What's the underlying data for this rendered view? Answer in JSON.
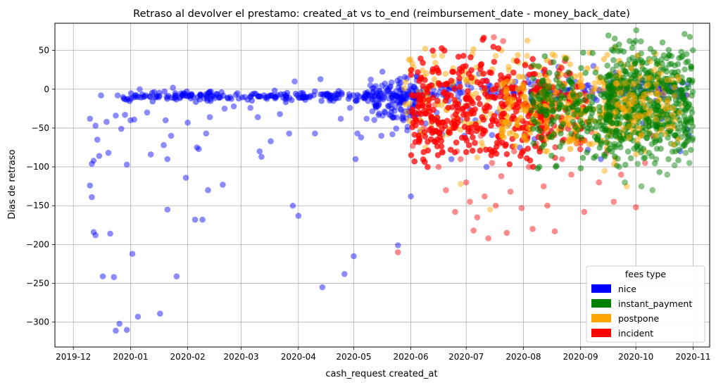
{
  "chart_data": {
    "type": "scatter",
    "title": "Retraso al devolver el prestamo: created_at vs to_end (reimbursement_date - money_back_date)",
    "xlabel": "cash_request created_at",
    "ylabel": "Dias de retraso",
    "x_ticks": [
      "2019-12",
      "2020-01",
      "2020-02",
      "2020-03",
      "2020-04",
      "2020-05",
      "2020-06",
      "2020-07",
      "2020-08",
      "2020-09",
      "2020-10",
      "2020-11"
    ],
    "y_ticks": [
      50,
      0,
      -50,
      -100,
      -150,
      -200,
      -250,
      -300
    ],
    "xlim": [
      "2019-11-21",
      "2020-11-10"
    ],
    "ylim": [
      -332,
      85
    ],
    "grid": true,
    "legend": {
      "title": "fees type",
      "placement": "lower-right",
      "entries": [
        {
          "label": "nice",
          "color": "#0000ff"
        },
        {
          "label": "instant_payment",
          "color": "#008000"
        },
        {
          "label": "postpone",
          "color": "#ffa500"
        },
        {
          "label": "incident",
          "color": "#ff0000"
        }
      ]
    },
    "series": [
      {
        "name": "nice",
        "color": "#0000ff",
        "points": [
          [
            "2019-12-10",
            -38
          ],
          [
            "2019-12-10",
            -124
          ],
          [
            "2019-12-11",
            -139
          ],
          [
            "2019-12-11",
            -96
          ],
          [
            "2019-12-12",
            -92
          ],
          [
            "2019-12-12",
            -184
          ],
          [
            "2019-12-13",
            -188
          ],
          [
            "2019-12-13",
            -47
          ],
          [
            "2019-12-14",
            -65
          ],
          [
            "2019-12-15",
            -86
          ],
          [
            "2019-12-16",
            -8
          ],
          [
            "2019-12-17",
            -241
          ],
          [
            "2019-12-19",
            -42
          ],
          [
            "2019-12-20",
            -82
          ],
          [
            "2019-12-21",
            -186
          ],
          [
            "2019-12-23",
            -242
          ],
          [
            "2019-12-24",
            -34
          ],
          [
            "2019-12-24",
            -311
          ],
          [
            "2019-12-25",
            -8
          ],
          [
            "2019-12-26",
            -302
          ],
          [
            "2019-12-27",
            -51
          ],
          [
            "2019-12-28",
            -10
          ],
          [
            "2019-12-29",
            -33
          ],
          [
            "2019-12-30",
            -97
          ],
          [
            "2019-12-30",
            -310
          ],
          [
            "2020-01-01",
            -40
          ],
          [
            "2020-01-02",
            -212
          ],
          [
            "2020-01-03",
            -39
          ],
          [
            "2020-01-04",
            -10
          ],
          [
            "2020-01-05",
            -293
          ],
          [
            "2020-01-06",
            0
          ],
          [
            "2020-01-08",
            -10
          ],
          [
            "2020-01-10",
            -30
          ],
          [
            "2020-01-12",
            -84
          ],
          [
            "2020-01-15",
            -10
          ],
          [
            "2020-01-17",
            -289
          ],
          [
            "2020-01-19",
            -72
          ],
          [
            "2020-01-20",
            -40
          ],
          [
            "2020-01-21",
            -90
          ],
          [
            "2020-01-21",
            -155
          ],
          [
            "2020-01-23",
            -60
          ],
          [
            "2020-01-24",
            2
          ],
          [
            "2020-01-26",
            -241
          ],
          [
            "2020-01-28",
            -10
          ],
          [
            "2020-01-31",
            -114
          ],
          [
            "2020-02-01",
            -43
          ],
          [
            "2020-02-04",
            -10
          ],
          [
            "2020-02-05",
            -168
          ],
          [
            "2020-02-06",
            -75
          ],
          [
            "2020-02-07",
            -77
          ],
          [
            "2020-02-09",
            -168
          ],
          [
            "2020-02-10",
            -12
          ],
          [
            "2020-02-11",
            -57
          ],
          [
            "2020-02-12",
            -130
          ],
          [
            "2020-02-13",
            -36
          ],
          [
            "2020-02-18",
            -10
          ],
          [
            "2020-02-20",
            -123
          ],
          [
            "2020-02-21",
            -25
          ],
          [
            "2020-02-24",
            -10
          ],
          [
            "2020-02-26",
            -22
          ],
          [
            "2020-02-28",
            -5
          ],
          [
            "2020-03-03",
            -10
          ],
          [
            "2020-03-06",
            -24
          ],
          [
            "2020-03-10",
            -36
          ],
          [
            "2020-03-11",
            -80
          ],
          [
            "2020-03-12",
            -87
          ],
          [
            "2020-03-15",
            -10
          ],
          [
            "2020-03-17",
            -67
          ],
          [
            "2020-03-20",
            -10
          ],
          [
            "2020-03-22",
            -32
          ],
          [
            "2020-03-27",
            -57
          ],
          [
            "2020-03-29",
            -150
          ],
          [
            "2020-03-30",
            10
          ],
          [
            "2020-04-01",
            -163
          ],
          [
            "2020-04-06",
            -10
          ],
          [
            "2020-04-10",
            -57
          ],
          [
            "2020-04-13",
            13
          ],
          [
            "2020-04-14",
            -255
          ],
          [
            "2020-04-17",
            -10
          ],
          [
            "2020-04-20",
            -15
          ],
          [
            "2020-04-24",
            -38
          ],
          [
            "2020-04-26",
            -238
          ],
          [
            "2020-04-29",
            -24
          ],
          [
            "2020-05-01",
            -215
          ],
          [
            "2020-05-02",
            -90
          ],
          [
            "2020-05-03",
            -57
          ],
          [
            "2020-05-05",
            -62
          ],
          [
            "2020-05-08",
            -38
          ],
          [
            "2020-05-10",
            5
          ],
          [
            "2020-05-12",
            -10
          ],
          [
            "2020-05-14",
            -22
          ],
          [
            "2020-05-16",
            -60
          ],
          [
            "2020-05-18",
            -30
          ],
          [
            "2020-05-20",
            -12
          ],
          [
            "2020-05-22",
            -58
          ],
          [
            "2020-05-25",
            -201
          ],
          [
            "2020-05-27",
            -10
          ],
          [
            "2020-05-28",
            -40
          ],
          [
            "2020-05-30",
            -53
          ],
          [
            "2020-06-01",
            -138
          ],
          [
            "2020-06-02",
            -20
          ],
          [
            "2020-06-04",
            -33
          ],
          [
            "2020-06-06",
            -55
          ],
          [
            "2020-06-09",
            -44
          ],
          [
            "2020-06-12",
            -7
          ],
          [
            "2020-06-15",
            -30
          ],
          [
            "2020-06-18",
            -58
          ],
          [
            "2020-06-20",
            -10
          ],
          [
            "2020-06-23",
            -90
          ],
          [
            "2020-06-26",
            -22
          ],
          [
            "2020-06-28",
            -40
          ],
          [
            "2020-06-30",
            -60
          ],
          [
            "2020-07-03",
            -26
          ],
          [
            "2020-07-06",
            -40
          ],
          [
            "2020-07-08",
            20
          ],
          [
            "2020-07-12",
            -100
          ],
          [
            "2020-07-15",
            -59
          ],
          [
            "2020-07-18",
            -30
          ],
          [
            "2020-07-20",
            -57
          ],
          [
            "2020-07-22",
            -20
          ],
          [
            "2020-07-24",
            -45
          ],
          [
            "2020-07-26",
            5
          ],
          [
            "2020-07-30",
            -75
          ],
          [
            "2020-08-03",
            16
          ],
          [
            "2020-08-07",
            -64
          ],
          [
            "2020-08-12",
            23
          ],
          [
            "2020-08-16",
            -55
          ],
          [
            "2020-08-20",
            29
          ],
          [
            "2020-09-05",
            -78
          ],
          [
            "2020-09-08",
            30
          ],
          [
            "2020-09-12",
            -90
          ],
          [
            "2020-09-20",
            21
          ],
          [
            "2020-10-05",
            -44
          ],
          [
            "2020-10-15",
            -38
          ],
          [
            "2020-10-25",
            -80
          ],
          [
            "2020-10-29",
            -52
          ],
          [
            "2020-10-30",
            -60
          ]
        ]
      },
      {
        "name": "postpone",
        "color": "#ffa500",
        "points": [
          [
            "2020-05-31",
            38
          ],
          [
            "2020-06-05",
            -12
          ],
          [
            "2020-06-09",
            -75
          ],
          [
            "2020-06-12",
            -45
          ],
          [
            "2020-06-18",
            43
          ],
          [
            "2020-06-21",
            -58
          ],
          [
            "2020-06-25",
            -46
          ],
          [
            "2020-06-27",
            -40
          ],
          [
            "2020-06-28",
            -122
          ],
          [
            "2020-07-02",
            -10
          ],
          [
            "2020-07-04",
            -45
          ],
          [
            "2020-07-07",
            -88
          ],
          [
            "2020-07-10",
            -74
          ],
          [
            "2020-07-12",
            -20
          ],
          [
            "2020-07-14",
            -155
          ],
          [
            "2020-07-17",
            43
          ],
          [
            "2020-07-19",
            -28
          ],
          [
            "2020-07-22",
            -42
          ],
          [
            "2020-07-24",
            29
          ],
          [
            "2020-07-28",
            -60
          ],
          [
            "2020-07-31",
            -22
          ],
          [
            "2020-08-03",
            43
          ],
          [
            "2020-08-07",
            -25
          ],
          [
            "2020-08-10",
            -50
          ],
          [
            "2020-08-14",
            -80
          ],
          [
            "2020-08-18",
            43
          ],
          [
            "2020-08-22",
            -35
          ],
          [
            "2020-08-26",
            -60
          ],
          [
            "2020-08-29",
            -10
          ],
          [
            "2020-09-02",
            -40
          ],
          [
            "2020-09-06",
            -25
          ],
          [
            "2020-09-10",
            -68
          ],
          [
            "2020-09-14",
            -105
          ],
          [
            "2020-09-18",
            -15
          ],
          [
            "2020-09-22",
            -45
          ],
          [
            "2020-09-26",
            -125
          ],
          [
            "2020-09-30",
            -30
          ],
          [
            "2020-10-04",
            30
          ],
          [
            "2020-10-08",
            -55
          ],
          [
            "2020-10-13",
            -5
          ],
          [
            "2020-10-18",
            -35
          ],
          [
            "2020-10-22",
            -50
          ],
          [
            "2020-10-26",
            -20
          ],
          [
            "2020-10-29",
            -8
          ]
        ]
      },
      {
        "name": "incident",
        "color": "#ff0000",
        "points": [
          [
            "2020-05-25",
            -210
          ],
          [
            "2020-06-02",
            -73
          ],
          [
            "2020-06-06",
            -40
          ],
          [
            "2020-06-08",
            -50
          ],
          [
            "2020-06-12",
            -35
          ],
          [
            "2020-06-14",
            -20
          ],
          [
            "2020-06-16",
            -100
          ],
          [
            "2020-06-18",
            -80
          ],
          [
            "2020-06-20",
            -130
          ],
          [
            "2020-06-22",
            -52
          ],
          [
            "2020-06-24",
            -35
          ],
          [
            "2020-06-25",
            -158
          ],
          [
            "2020-06-26",
            -80
          ],
          [
            "2020-06-28",
            -90
          ],
          [
            "2020-07-01",
            -120
          ],
          [
            "2020-07-03",
            -145
          ],
          [
            "2020-07-05",
            -182
          ],
          [
            "2020-07-07",
            -165
          ],
          [
            "2020-07-09",
            -60
          ],
          [
            "2020-07-11",
            -138
          ],
          [
            "2020-07-13",
            -192
          ],
          [
            "2020-07-15",
            -95
          ],
          [
            "2020-07-16",
            67
          ],
          [
            "2020-07-17",
            -150
          ],
          [
            "2020-07-19",
            -70
          ],
          [
            "2020-07-20",
            -112
          ],
          [
            "2020-07-21",
            62
          ],
          [
            "2020-07-23",
            -185
          ],
          [
            "2020-07-25",
            -132
          ],
          [
            "2020-07-27",
            -80
          ],
          [
            "2020-07-29",
            -40
          ],
          [
            "2020-07-31",
            -153
          ],
          [
            "2020-08-02",
            -55
          ],
          [
            "2020-08-04",
            -100
          ],
          [
            "2020-08-06",
            -180
          ],
          [
            "2020-08-08",
            -70
          ],
          [
            "2020-08-10",
            -30
          ],
          [
            "2020-08-12",
            -125
          ],
          [
            "2020-08-14",
            -150
          ],
          [
            "2020-08-16",
            -60
          ],
          [
            "2020-08-18",
            -183
          ],
          [
            "2020-08-20",
            -25
          ],
          [
            "2020-08-22",
            -90
          ],
          [
            "2020-08-24",
            -45
          ],
          [
            "2020-08-27",
            -110
          ],
          [
            "2020-08-30",
            -70
          ],
          [
            "2020-09-03",
            -158
          ],
          [
            "2020-09-07",
            -55
          ],
          [
            "2020-09-11",
            -120
          ],
          [
            "2020-09-15",
            -82
          ],
          [
            "2020-09-19",
            -145
          ],
          [
            "2020-09-23",
            -110
          ],
          [
            "2020-09-27",
            -40
          ],
          [
            "2020-10-01",
            -152
          ],
          [
            "2020-10-06",
            -95
          ],
          [
            "2020-10-10",
            -60
          ]
        ]
      },
      {
        "name": "instant_payment",
        "color": "#008000",
        "points": [
          [
            "2020-09-15",
            -28
          ],
          [
            "2020-09-20",
            -75
          ],
          [
            "2020-09-22",
            -100
          ],
          [
            "2020-09-25",
            -120
          ],
          [
            "2020-09-28",
            -60
          ],
          [
            "2020-10-01",
            -35
          ],
          [
            "2020-10-02",
            -96
          ],
          [
            "2020-10-04",
            -125
          ],
          [
            "2020-10-06",
            -88
          ],
          [
            "2020-10-08",
            -48
          ],
          [
            "2020-10-10",
            -130
          ],
          [
            "2020-10-12",
            -90
          ],
          [
            "2020-10-14",
            -66
          ],
          [
            "2020-10-16",
            -45
          ],
          [
            "2020-10-18",
            -110
          ],
          [
            "2020-10-20",
            -70
          ],
          [
            "2020-10-22",
            -98
          ],
          [
            "2020-10-24",
            -55
          ],
          [
            "2020-10-26",
            -30
          ],
          [
            "2020-10-28",
            -82
          ],
          [
            "2020-10-30",
            -95
          ],
          [
            "2020-10-30",
            -20
          ],
          [
            "2020-10-31",
            -40
          ]
        ]
      }
    ]
  }
}
